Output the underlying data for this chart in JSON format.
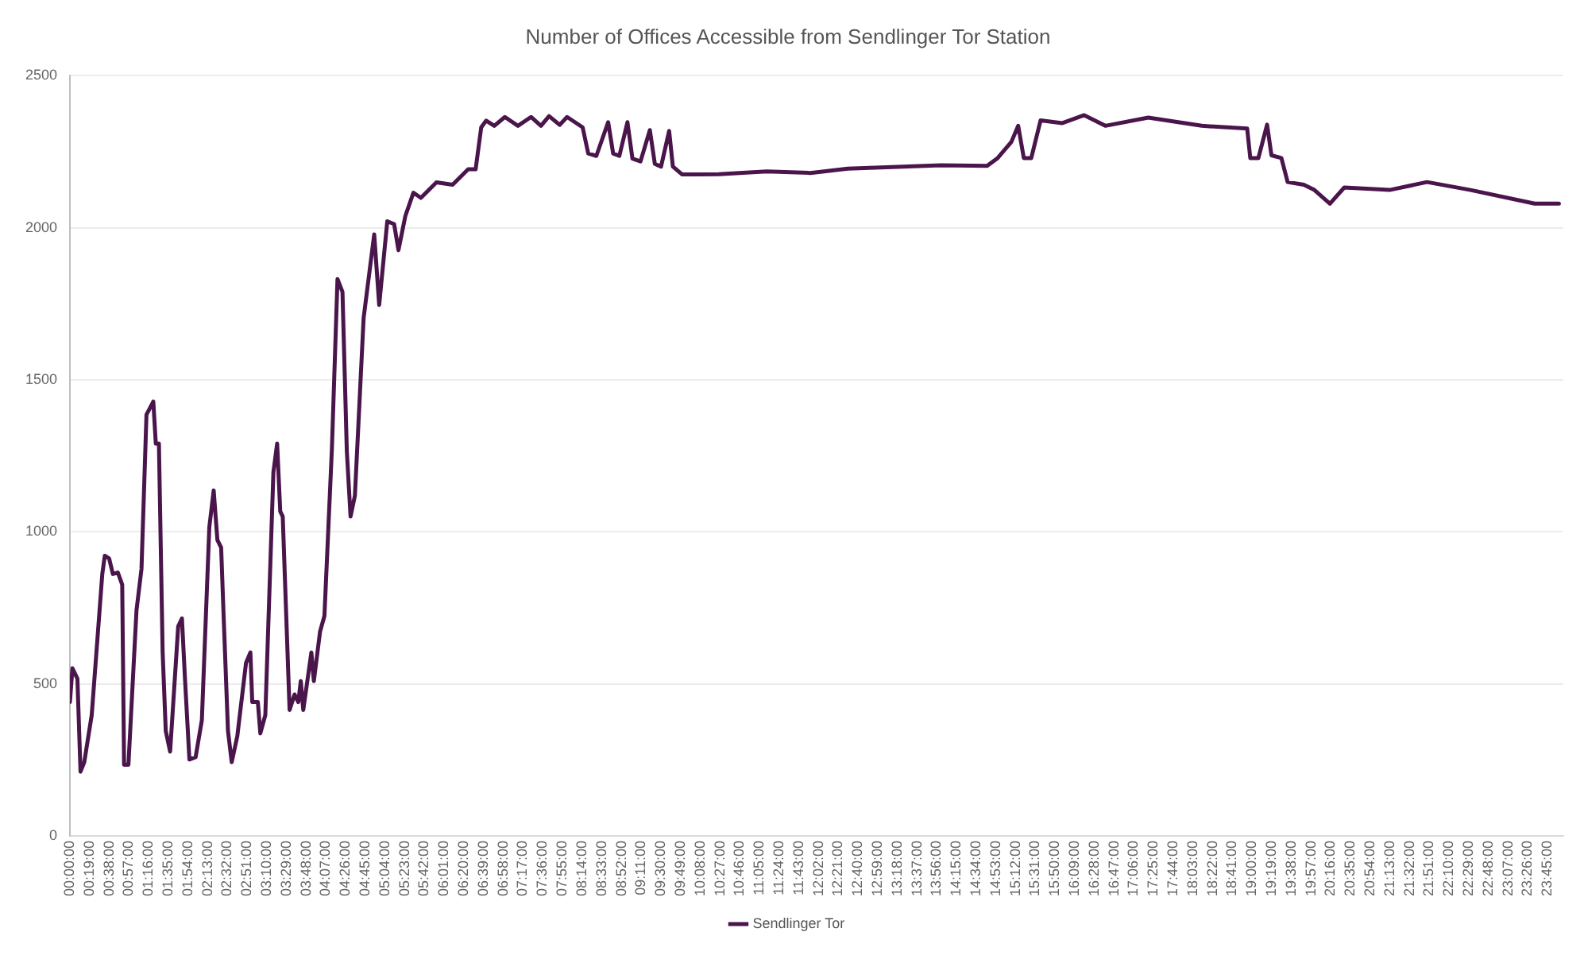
{
  "chart_data": {
    "type": "line",
    "title": "Number of Offices Accessible from Sendlinger Tor Station",
    "series": [
      {
        "name": "Sendlinger Tor",
        "color": "#4a154b",
        "x": [
          0,
          0.04,
          0.12,
          0.17,
          0.23,
          0.35,
          0.52,
          0.56,
          0.63,
          0.69,
          0.77,
          0.84,
          0.87,
          0.94,
          1.07,
          1.15,
          1.23,
          1.34,
          1.38,
          1.43,
          1.49,
          1.54,
          1.61,
          1.74,
          1.8,
          1.85,
          1.92,
          2.02,
          2.12,
          2.24,
          2.31,
          2.37,
          2.43,
          2.47,
          2.54,
          2.6,
          2.69,
          2.83,
          2.9,
          2.93,
          3.02,
          3.06,
          3.14,
          3.27,
          3.33,
          3.38,
          3.42,
          3.5,
          3.53,
          3.61,
          3.67,
          3.71,
          3.75,
          3.88,
          3.92,
          4.02,
          4.09,
          4.21,
          4.3,
          4.38,
          4.45,
          4.51,
          4.58,
          4.72,
          4.89,
          4.97,
          5.1,
          5.21,
          5.28,
          5.39,
          5.52,
          5.64,
          5.89,
          6.15,
          6.4,
          6.52,
          6.61,
          6.69,
          6.82,
          6.99,
          7.2,
          7.41,
          7.57,
          7.7,
          7.87,
          7.99,
          8.24,
          8.33,
          8.46,
          8.65,
          8.73,
          8.83,
          8.96,
          9.04,
          9.17,
          9.32,
          9.4,
          9.5,
          9.63,
          9.69,
          9.84,
          10.09,
          10.43,
          11.2,
          11.9,
          12.5,
          13.3,
          14,
          14.74,
          14.91,
          15.13,
          15.24,
          15.33,
          15.45,
          15.6,
          15.95,
          16.3,
          16.64,
          17.33,
          18.19,
          18.92,
          18.97,
          19.1,
          19.24,
          19.31,
          19.47,
          19.57,
          19.83,
          20,
          20.25,
          20.48,
          21.21,
          21.81,
          22.51,
          23.54,
          23.93
        ],
        "values": [
          440,
          551,
          517,
          211,
          242,
          397,
          861,
          921,
          912,
          861,
          866,
          826,
          234,
          234,
          742,
          878,
          1385,
          1428,
          1290,
          1290,
          603,
          345,
          277,
          689,
          715,
          512,
          251,
          259,
          380,
          1015,
          1136,
          973,
          948,
          723,
          345,
          242,
          328,
          569,
          603,
          440,
          440,
          337,
          397,
          1196,
          1290,
          1067,
          1050,
          586,
          414,
          465,
          440,
          509,
          414,
          603,
          509,
          672,
          723,
          1273,
          1831,
          1789,
          1265,
          1050,
          1119,
          1703,
          1978,
          1746,
          2021,
          2012,
          1926,
          2038,
          2115,
          2098,
          2149,
          2141,
          2192,
          2192,
          2330,
          2352,
          2335,
          2364,
          2335,
          2364,
          2335,
          2367,
          2338,
          2364,
          2330,
          2244,
          2236,
          2347,
          2244,
          2236,
          2347,
          2227,
          2218,
          2321,
          2210,
          2201,
          2318,
          2201,
          2175,
          2175,
          2176,
          2185,
          2180,
          2194,
          2200,
          2205,
          2203,
          2229,
          2282,
          2335,
          2229,
          2229,
          2353,
          2344,
          2370,
          2335,
          2362,
          2335,
          2326,
          2229,
          2229,
          2339,
          2238,
          2229,
          2150,
          2141,
          2124,
          2079,
          2132,
          2124,
          2150,
          2124,
          2079,
          2079
        ]
      }
    ],
    "xlim": [
      0,
      24
    ],
    "xticks": [
      {
        "value": 0,
        "label": "00:00:00"
      },
      {
        "value": 0.3167,
        "label": "00:19:00"
      },
      {
        "value": 0.6333,
        "label": "00:38:00"
      },
      {
        "value": 0.95,
        "label": "00:57:00"
      },
      {
        "value": 1.2667,
        "label": "01:16:00"
      },
      {
        "value": 1.5833,
        "label": "01:35:00"
      },
      {
        "value": 1.9,
        "label": "01:54:00"
      },
      {
        "value": 2.2167,
        "label": "02:13:00"
      },
      {
        "value": 2.5333,
        "label": "02:32:00"
      },
      {
        "value": 2.85,
        "label": "02:51:00"
      },
      {
        "value": 3.1667,
        "label": "03:10:00"
      },
      {
        "value": 3.4833,
        "label": "03:29:00"
      },
      {
        "value": 3.8,
        "label": "03:48:00"
      },
      {
        "value": 4.1167,
        "label": "04:07:00"
      },
      {
        "value": 4.4333,
        "label": "04:26:00"
      },
      {
        "value": 4.75,
        "label": "04:45:00"
      },
      {
        "value": 5.0667,
        "label": "05:04:00"
      },
      {
        "value": 5.3833,
        "label": "05:23:00"
      },
      {
        "value": 5.7,
        "label": "05:42:00"
      },
      {
        "value": 6.0167,
        "label": "06:01:00"
      },
      {
        "value": 6.3333,
        "label": "06:20:00"
      },
      {
        "value": 6.65,
        "label": "06:39:00"
      },
      {
        "value": 6.9667,
        "label": "06:58:00"
      },
      {
        "value": 7.2833,
        "label": "07:17:00"
      },
      {
        "value": 7.6,
        "label": "07:36:00"
      },
      {
        "value": 7.9167,
        "label": "07:55:00"
      },
      {
        "value": 8.2333,
        "label": "08:14:00"
      },
      {
        "value": 8.55,
        "label": "08:33:00"
      },
      {
        "value": 8.8667,
        "label": "08:52:00"
      },
      {
        "value": 9.1833,
        "label": "09:11:00"
      },
      {
        "value": 9.5,
        "label": "09:30:00"
      },
      {
        "value": 9.8167,
        "label": "09:49:00"
      },
      {
        "value": 10.1333,
        "label": "10:08:00"
      },
      {
        "value": 10.45,
        "label": "10:27:00"
      },
      {
        "value": 10.7667,
        "label": "10:46:00"
      },
      {
        "value": 11.0833,
        "label": "11:05:00"
      },
      {
        "value": 11.4,
        "label": "11:24:00"
      },
      {
        "value": 11.7167,
        "label": "11:43:00"
      },
      {
        "value": 12.0333,
        "label": "12:02:00"
      },
      {
        "value": 12.35,
        "label": "12:21:00"
      },
      {
        "value": 12.6667,
        "label": "12:40:00"
      },
      {
        "value": 12.9833,
        "label": "12:59:00"
      },
      {
        "value": 13.3,
        "label": "13:18:00"
      },
      {
        "value": 13.6167,
        "label": "13:37:00"
      },
      {
        "value": 13.9333,
        "label": "13:56:00"
      },
      {
        "value": 14.25,
        "label": "14:15:00"
      },
      {
        "value": 14.5667,
        "label": "14:34:00"
      },
      {
        "value": 14.8833,
        "label": "14:53:00"
      },
      {
        "value": 15.2,
        "label": "15:12:00"
      },
      {
        "value": 15.5167,
        "label": "15:31:00"
      },
      {
        "value": 15.8333,
        "label": "15:50:00"
      },
      {
        "value": 16.15,
        "label": "16:09:00"
      },
      {
        "value": 16.4667,
        "label": "16:28:00"
      },
      {
        "value": 16.7833,
        "label": "16:47:00"
      },
      {
        "value": 17.1,
        "label": "17:06:00"
      },
      {
        "value": 17.4167,
        "label": "17:25:00"
      },
      {
        "value": 17.7333,
        "label": "17:44:00"
      },
      {
        "value": 18.05,
        "label": "18:03:00"
      },
      {
        "value": 18.3667,
        "label": "18:22:00"
      },
      {
        "value": 18.6833,
        "label": "18:41:00"
      },
      {
        "value": 19,
        "label": "19:00:00"
      },
      {
        "value": 19.3167,
        "label": "19:19:00"
      },
      {
        "value": 19.6333,
        "label": "19:38:00"
      },
      {
        "value": 19.95,
        "label": "19:57:00"
      },
      {
        "value": 20.2667,
        "label": "20:16:00"
      },
      {
        "value": 20.5833,
        "label": "20:35:00"
      },
      {
        "value": 20.9,
        "label": "20:54:00"
      },
      {
        "value": 21.2167,
        "label": "21:13:00"
      },
      {
        "value": 21.5333,
        "label": "21:32:00"
      },
      {
        "value": 21.85,
        "label": "21:51:00"
      },
      {
        "value": 22.1667,
        "label": "22:10:00"
      },
      {
        "value": 22.4833,
        "label": "22:29:00"
      },
      {
        "value": 22.8,
        "label": "22:48:00"
      },
      {
        "value": 23.1167,
        "label": "23:07:00"
      },
      {
        "value": 23.4333,
        "label": "23:26:00"
      },
      {
        "value": 23.75,
        "label": "23:45:00"
      }
    ],
    "ylim": [
      0,
      2500
    ],
    "yticks": [
      0,
      500,
      1000,
      1500,
      2000,
      2500
    ],
    "grid": "y",
    "legend": "bottom",
    "marker": "none",
    "line_style": "solid"
  }
}
